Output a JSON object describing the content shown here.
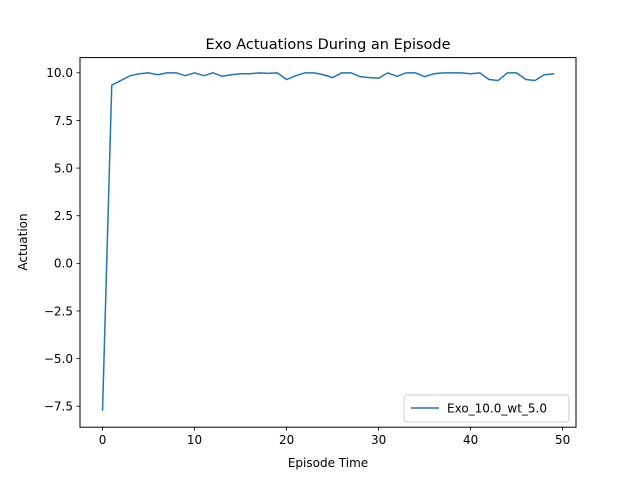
{
  "chart_data": {
    "type": "line",
    "title": "Exo Actuations During an Episode",
    "xlabel": "Episode Time",
    "ylabel": "Actuation",
    "xlim": [
      -2.45,
      51.45
    ],
    "ylim": [
      -8.6,
      10.8
    ],
    "xticks": [
      0,
      10,
      20,
      30,
      40,
      50
    ],
    "yticks": [
      -7.5,
      -5.0,
      -2.5,
      0.0,
      2.5,
      5.0,
      7.5,
      10.0
    ],
    "xtick_labels": [
      "0",
      "10",
      "20",
      "30",
      "40",
      "50"
    ],
    "ytick_labels": [
      "−7.5",
      "−5.0",
      "−2.5",
      "0.0",
      "2.5",
      "5.0",
      "7.5",
      "10.0"
    ],
    "grid": false,
    "legend": "lower-right",
    "series": [
      {
        "name": "Exo_10.0_wt_5.0",
        "color": "#1f77b4",
        "x": [
          0,
          1,
          2,
          3,
          4,
          5,
          6,
          7,
          8,
          9,
          10,
          11,
          12,
          13,
          14,
          15,
          16,
          17,
          18,
          19,
          20,
          21,
          22,
          23,
          24,
          25,
          26,
          27,
          28,
          29,
          30,
          31,
          32,
          33,
          34,
          35,
          36,
          37,
          38,
          39,
          40,
          41,
          42,
          43,
          44,
          45,
          46,
          47,
          48,
          49
        ],
        "y": [
          -7.7,
          9.35,
          9.6,
          9.85,
          9.95,
          10.0,
          9.9,
          10.0,
          10.0,
          9.85,
          10.0,
          9.85,
          10.0,
          9.82,
          9.9,
          9.95,
          9.95,
          10.0,
          9.97,
          10.0,
          9.65,
          9.85,
          10.0,
          10.0,
          9.9,
          9.75,
          10.0,
          10.0,
          9.8,
          9.75,
          9.72,
          10.0,
          9.82,
          10.0,
          10.0,
          9.8,
          9.95,
          10.0,
          10.0,
          10.0,
          9.95,
          10.0,
          9.65,
          9.6,
          10.0,
          10.0,
          9.65,
          9.6,
          9.9,
          9.95
        ]
      }
    ]
  }
}
